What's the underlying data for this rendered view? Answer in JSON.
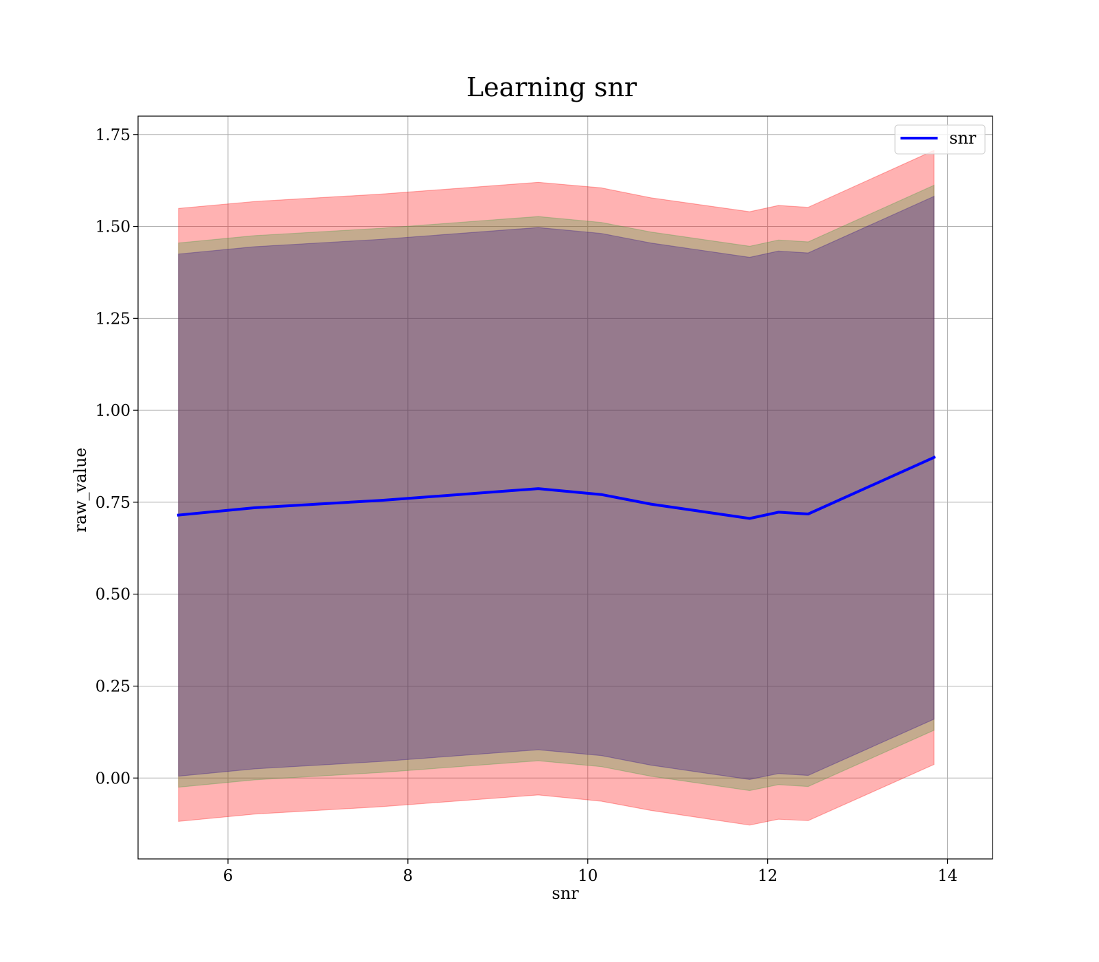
{
  "chart_data": {
    "type": "line",
    "title": "Learning snr",
    "xlabel": "snr",
    "ylabel": "raw_value",
    "xlim": [
      5.0,
      14.5
    ],
    "ylim": [
      -0.22,
      1.8
    ],
    "xticks": [
      6,
      8,
      10,
      12,
      14
    ],
    "yticks": [
      0.0,
      0.25,
      0.5,
      0.75,
      1.0,
      1.25,
      1.5,
      1.75
    ],
    "grid": true,
    "legend": {
      "placement": "top-right",
      "entries": [
        "snr"
      ]
    },
    "x": [
      5.45,
      6.3,
      7.7,
      9.45,
      10.15,
      10.7,
      11.8,
      12.12,
      12.45,
      13.85
    ],
    "series": [
      {
        "name": "snr",
        "color": "#0000ff",
        "values": [
          0.715,
          0.735,
          0.755,
          0.787,
          0.771,
          0.745,
          0.706,
          0.723,
          0.718,
          0.872
        ]
      }
    ],
    "bands": [
      {
        "label_in_legend": false,
        "color": "#ff0000",
        "opacity": 0.3,
        "lower": [
          -0.118,
          -0.098,
          -0.078,
          -0.046,
          -0.063,
          -0.088,
          -0.128,
          -0.112,
          -0.116,
          0.037
        ],
        "upper": [
          1.549,
          1.568,
          1.588,
          1.62,
          1.605,
          1.578,
          1.54,
          1.557,
          1.552,
          1.707
        ]
      },
      {
        "label_in_legend": false,
        "color": "#3a9a3a",
        "opacity": 0.3,
        "lower": [
          -0.025,
          -0.005,
          0.015,
          0.047,
          0.031,
          0.005,
          -0.034,
          -0.018,
          -0.023,
          0.13
        ],
        "upper": [
          1.455,
          1.475,
          1.495,
          1.527,
          1.511,
          1.485,
          1.446,
          1.463,
          1.458,
          1.612
        ]
      },
      {
        "label_in_legend": false,
        "color": "#2a0a8c",
        "opacity": 0.3,
        "lower": [
          0.005,
          0.025,
          0.045,
          0.077,
          0.061,
          0.035,
          -0.004,
          0.012,
          0.007,
          0.16
        ],
        "upper": [
          1.425,
          1.445,
          1.465,
          1.497,
          1.481,
          1.455,
          1.416,
          1.433,
          1.428,
          1.582
        ]
      }
    ]
  }
}
